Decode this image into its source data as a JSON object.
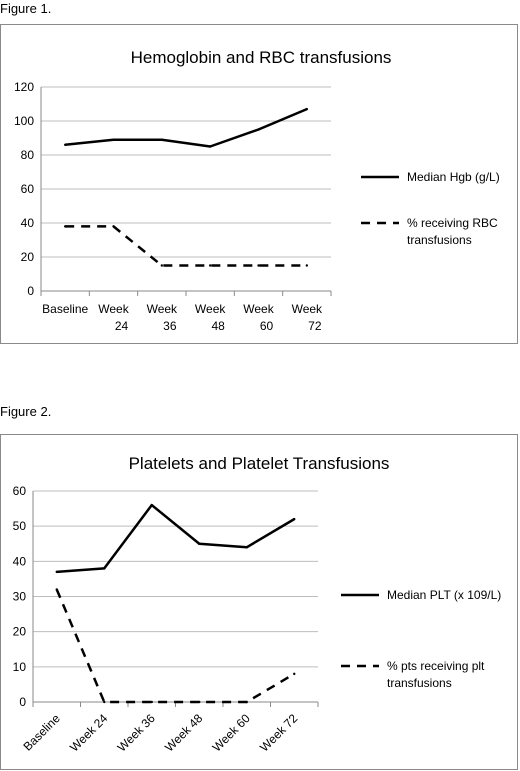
{
  "figures": [
    {
      "label": "Figure 1."
    },
    {
      "label": "Figure 2."
    }
  ],
  "chart_data": [
    {
      "type": "line",
      "title": "Hemoglobin and RBC transfusions",
      "categories": [
        [
          "Baseline"
        ],
        [
          "Week",
          "24"
        ],
        [
          "Week",
          "36"
        ],
        [
          "Week",
          "48"
        ],
        [
          "Week",
          "60"
        ],
        [
          "Week",
          "72"
        ]
      ],
      "ylim": [
        0,
        120
      ],
      "yticks": [
        0,
        20,
        40,
        60,
        80,
        100,
        120
      ],
      "grid": true,
      "legend_position": "right",
      "series": [
        {
          "name": "Median Hgb (g/L)",
          "style": "solid",
          "values": [
            86,
            89,
            89,
            85,
            95,
            107
          ]
        },
        {
          "name": "% receiving RBC transfusions",
          "name_lines": [
            "% receiving RBC",
            "transfusions"
          ],
          "style": "dashed",
          "values": [
            38,
            38,
            15,
            15,
            15,
            15
          ]
        }
      ]
    },
    {
      "type": "line",
      "title": "Platelets and Platelet Transfusions",
      "categories": [
        [
          "Baseline"
        ],
        [
          "Week 24"
        ],
        [
          "Week 36"
        ],
        [
          "Week 48"
        ],
        [
          "Week 60"
        ],
        [
          "Week 72"
        ]
      ],
      "x_label_rotation": -45,
      "ylim": [
        0,
        60
      ],
      "yticks": [
        0,
        10,
        20,
        30,
        40,
        50,
        60
      ],
      "grid": true,
      "legend_position": "right",
      "series": [
        {
          "name": "Median PLT (x 109/L)",
          "style": "solid",
          "values": [
            37,
            38,
            56,
            45,
            44,
            52
          ]
        },
        {
          "name": "% pts receiving plt transfusions",
          "name_lines": [
            "% pts receiving plt",
            "transfusions"
          ],
          "style": "dashed",
          "values": [
            32,
            0,
            0,
            0,
            0,
            8
          ]
        }
      ]
    }
  ]
}
